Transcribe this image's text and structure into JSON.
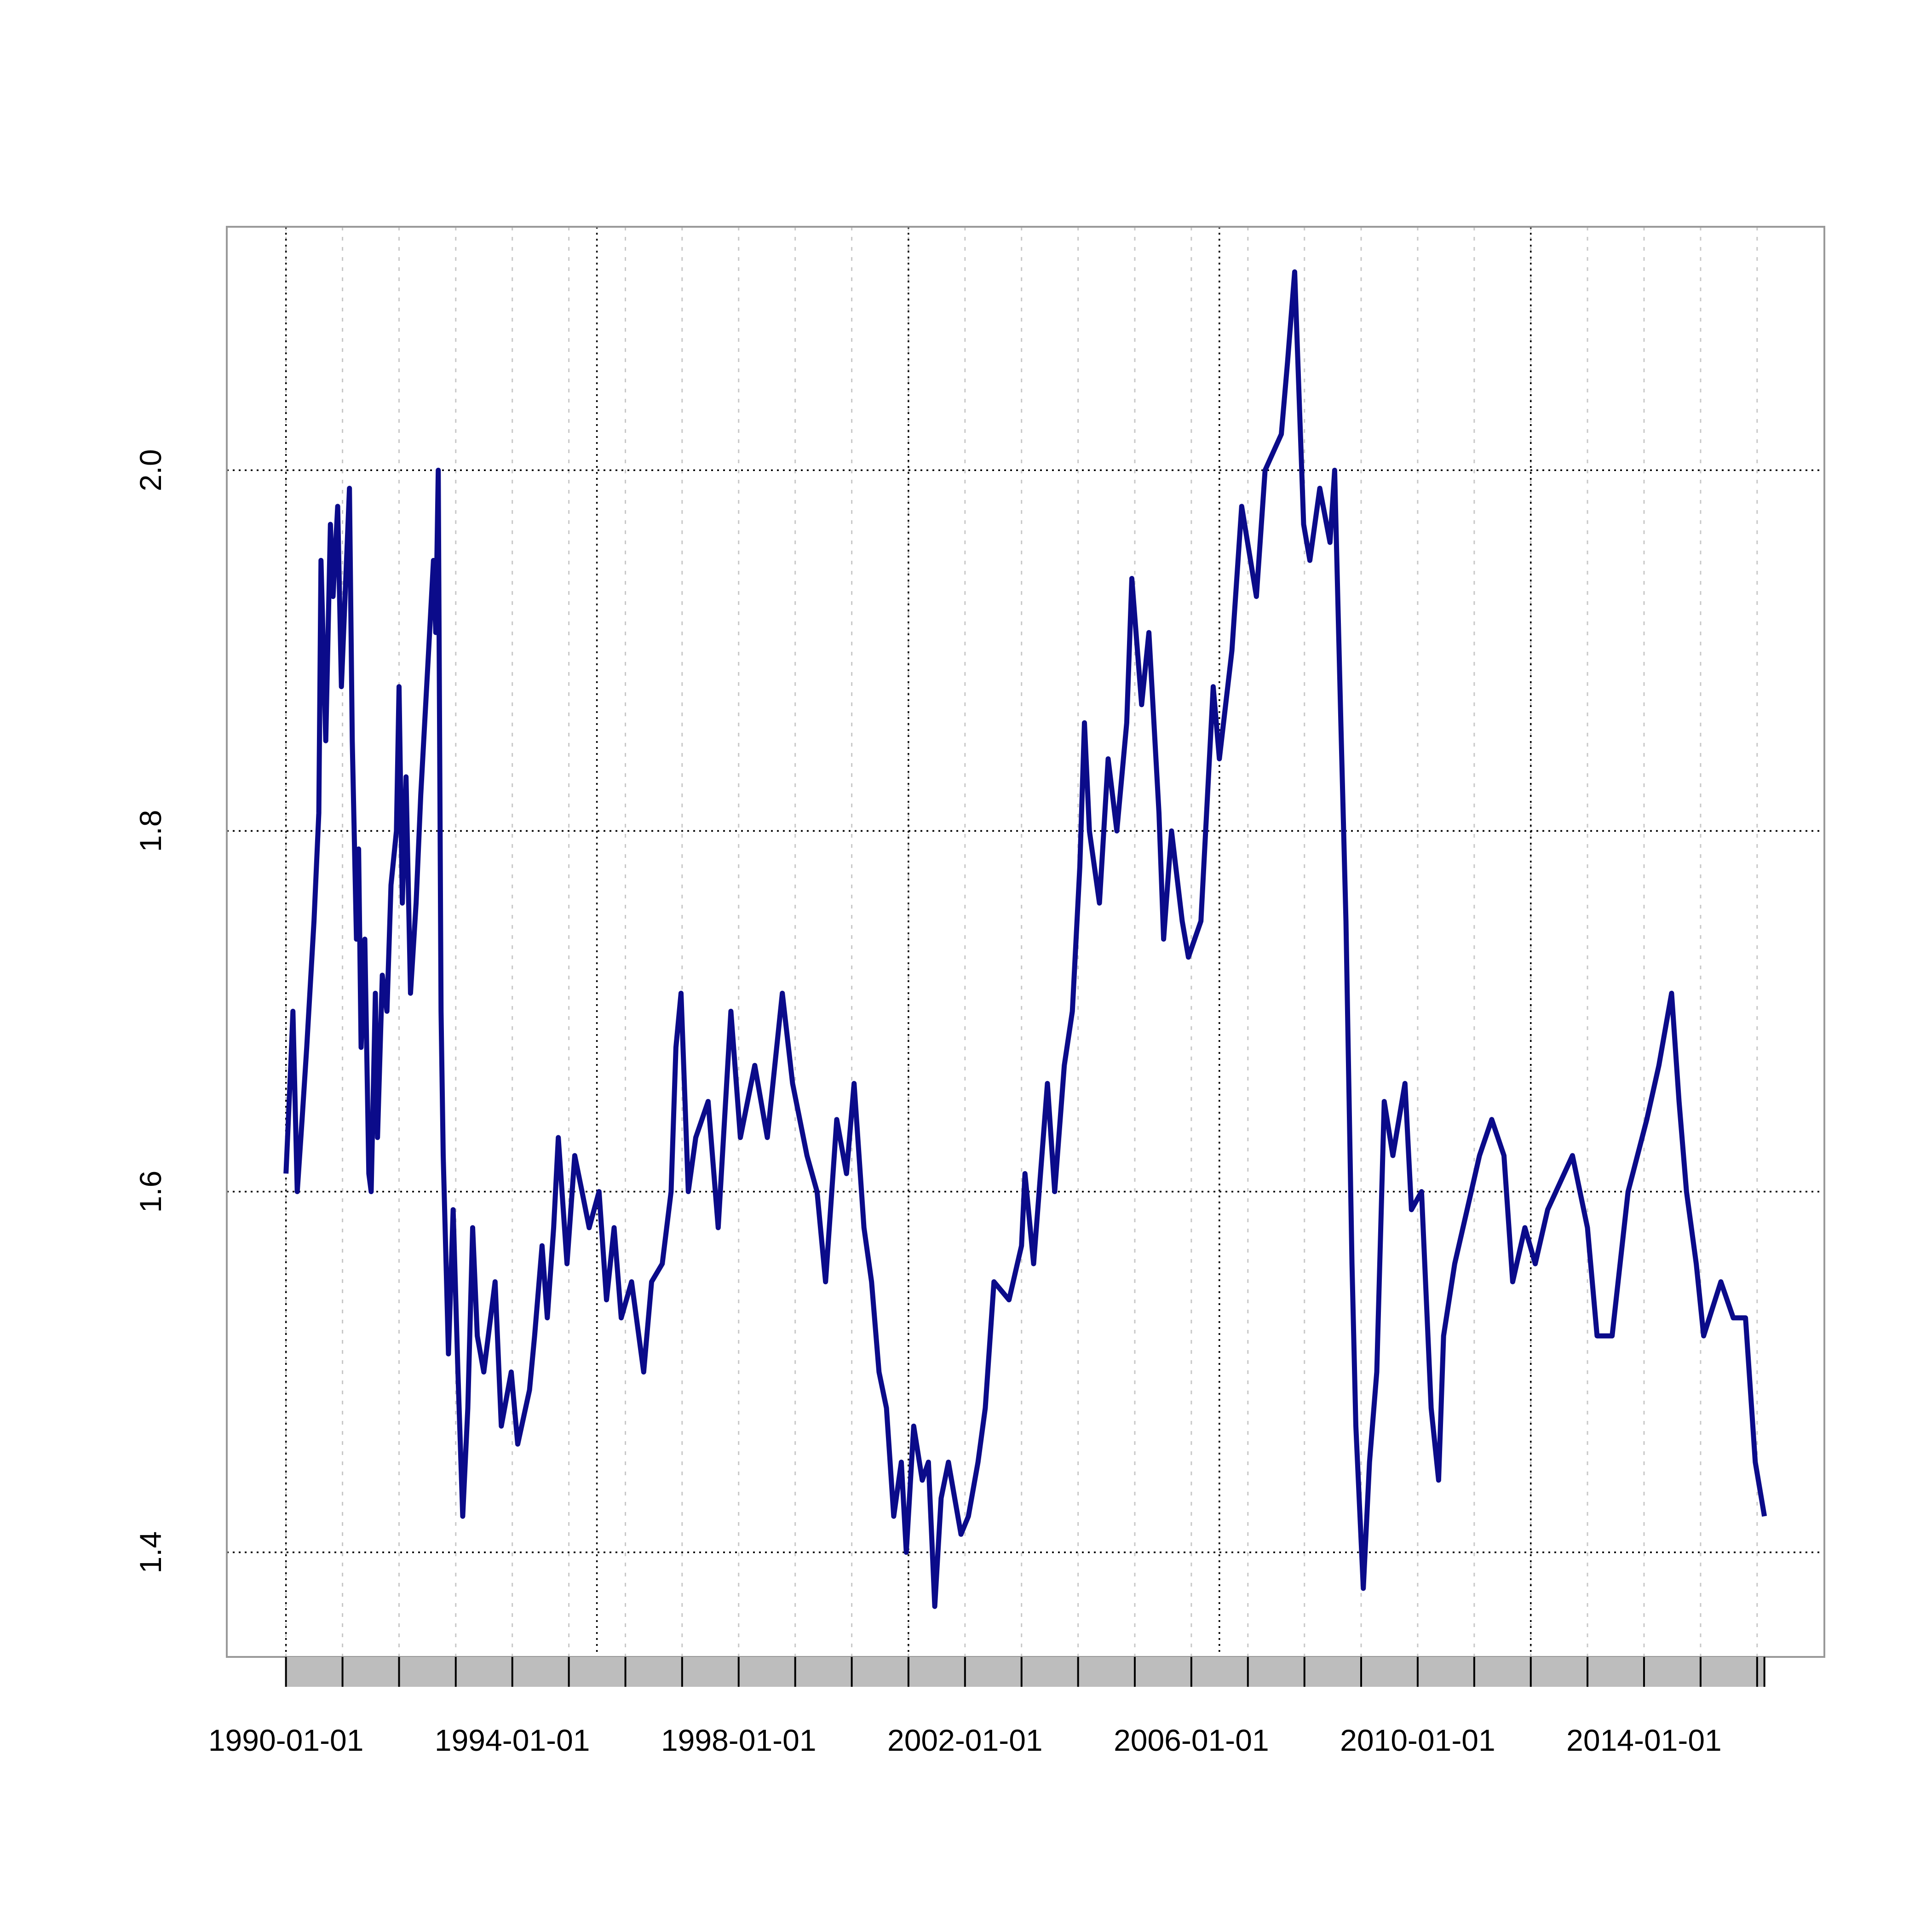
{
  "chart_data": {
    "type": "line",
    "x": [
      "1990-01-01",
      "1990-02-01",
      "1990-02-15",
      "1990-03-15",
      "1990-04-15",
      "1990-05-15",
      "1990-07-01",
      "1990-08-01",
      "1990-08-15",
      "1990-09-15",
      "1990-10-15",
      "1990-11-01",
      "1990-12-01",
      "1990-12-25",
      "1991-02-15",
      "1991-03-05",
      "1991-04-01",
      "1991-04-15",
      "1991-05-01",
      "1991-05-25",
      "1991-06-20",
      "1991-07-05",
      "1991-08-01",
      "1991-08-15",
      "1991-09-15",
      "1991-10-15",
      "1991-11-10",
      "1991-12-15",
      "1992-01-01",
      "1992-01-22",
      "1992-02-15",
      "1992-03-15",
      "1992-04-20",
      "1992-05-20",
      "1992-07-10",
      "1992-08-10",
      "1992-08-25",
      "1992-09-10",
      "1992-09-28",
      "1992-10-12",
      "1992-11-15",
      "1992-12-15",
      "1993-01-15",
      "1993-02-15",
      "1993-03-20",
      "1993-04-20",
      "1993-05-20",
      "1993-07-01",
      "1993-09-12",
      "1993-10-22",
      "1993-12-25",
      "1994-02-05",
      "1994-04-22",
      "1994-05-25",
      "1994-07-12",
      "1994-08-15",
      "1994-09-25",
      "1994-10-25",
      "1994-12-20",
      "1995-02-08",
      "1995-03-27",
      "1995-05-12",
      "1995-07-15",
      "1995-09-01",
      "1995-10-20",
      "1995-12-05",
      "1996-02-10",
      "1996-04-28",
      "1996-06-18",
      "1996-08-26",
      "1996-10-22",
      "1996-11-22",
      "1996-12-25",
      "1997-02-10",
      "1997-03-30",
      "1997-06-18",
      "1997-08-22",
      "1997-11-12",
      "1998-01-12",
      "1998-04-15",
      "1998-07-05",
      "1998-10-10",
      "1998-12-15",
      "1999-03-18",
      "1999-05-22",
      "1999-07-16",
      "1999-09-26",
      "1999-11-28",
      "2000-01-16",
      "2000-03-20",
      "2000-05-08",
      "2000-06-25",
      "2000-08-12",
      "2000-09-28",
      "2000-11-16",
      "2000-12-18",
      "2001-02-04",
      "2001-03-31",
      "2001-05-10",
      "2001-06-20",
      "2001-07-31",
      "2001-09-16",
      "2001-12-06",
      "2002-01-23",
      "2002-03-26",
      "2002-05-12",
      "2002-07-07",
      "2002-10-12",
      "2003-01-01",
      "2003-01-23",
      "2003-03-20",
      "2003-06-17",
      "2003-08-03",
      "2003-10-04",
      "2003-11-25",
      "2004-01-12",
      "2004-02-11",
      "2004-03-14",
      "2004-05-18",
      "2004-07-13",
      "2004-09-07",
      "2004-11-10",
      "2004-12-13",
      "2005-02-14",
      "2005-04-02",
      "2005-06-06",
      "2005-07-06",
      "2005-08-26",
      "2005-11-03",
      "2005-12-13",
      "2006-03-04",
      "2006-05-22",
      "2006-07-01",
      "2006-09-20",
      "2006-11-22",
      "2007-02-25",
      "2007-04-22",
      "2007-08-05",
      "2007-09-14",
      "2007-10-30",
      "2007-12-27",
      "2008-02-05",
      "2008-04-09",
      "2008-06-14",
      "2008-07-14",
      "2008-08-23",
      "2008-09-25",
      "2008-11-03",
      "2008-11-28",
      "2009-01-15",
      "2009-02-24",
      "2009-04-12",
      "2009-05-30",
      "2009-07-25",
      "2009-10-11",
      "2009-11-22",
      "2010-01-26",
      "2010-03-29",
      "2010-05-16",
      "2010-06-17",
      "2010-08-28",
      "2010-11-16",
      "2011-02-04",
      "2011-04-24",
      "2011-07-12",
      "2011-09-06",
      "2011-11-24",
      "2012-01-30",
      "2012-04-19",
      "2012-09-26",
      "2013-01-01",
      "2013-03-04",
      "2013-06-09",
      "2013-09-20",
      "2014-01-19",
      "2014-04-07",
      "2014-06-28",
      "2014-08-15",
      "2014-10-02",
      "2014-12-04",
      "2015-01-21",
      "2015-05-12",
      "2015-07-31",
      "2015-10-18",
      "2015-12-20",
      "2016-02-17"
    ],
    "series": [
      {
        "color": "#0b0b8a",
        "values": [
          1.61,
          1.67,
          1.7,
          1.6,
          1.64,
          1.68,
          1.75,
          1.81,
          1.95,
          1.85,
          1.97,
          1.93,
          1.98,
          1.88,
          1.99,
          1.85,
          1.74,
          1.79,
          1.68,
          1.74,
          1.61,
          1.6,
          1.71,
          1.63,
          1.72,
          1.7,
          1.77,
          1.8,
          1.88,
          1.76,
          1.83,
          1.71,
          1.76,
          1.82,
          1.9,
          1.95,
          1.91,
          2.0,
          1.7,
          1.62,
          1.51,
          1.59,
          1.5,
          1.42,
          1.48,
          1.58,
          1.52,
          1.5,
          1.55,
          1.47,
          1.5,
          1.46,
          1.49,
          1.52,
          1.57,
          1.53,
          1.58,
          1.63,
          1.56,
          1.62,
          1.6,
          1.58,
          1.6,
          1.54,
          1.58,
          1.53,
          1.55,
          1.5,
          1.55,
          1.56,
          1.6,
          1.68,
          1.71,
          1.6,
          1.63,
          1.65,
          1.58,
          1.7,
          1.63,
          1.67,
          1.63,
          1.71,
          1.66,
          1.62,
          1.6,
          1.55,
          1.64,
          1.61,
          1.66,
          1.58,
          1.55,
          1.5,
          1.48,
          1.42,
          1.45,
          1.4,
          1.47,
          1.44,
          1.45,
          1.37,
          1.43,
          1.45,
          1.41,
          1.42,
          1.45,
          1.48,
          1.55,
          1.54,
          1.57,
          1.61,
          1.56,
          1.66,
          1.6,
          1.67,
          1.7,
          1.78,
          1.86,
          1.8,
          1.76,
          1.84,
          1.8,
          1.86,
          1.94,
          1.87,
          1.91,
          1.81,
          1.74,
          1.8,
          1.75,
          1.73,
          1.75,
          1.88,
          1.84,
          1.9,
          1.98,
          1.93,
          2.0,
          2.02,
          2.06,
          2.11,
          1.97,
          1.95,
          1.99,
          1.96,
          2.0,
          1.86,
          1.75,
          1.56,
          1.47,
          1.38,
          1.45,
          1.5,
          1.65,
          1.62,
          1.66,
          1.59,
          1.6,
          1.48,
          1.44,
          1.52,
          1.56,
          1.59,
          1.62,
          1.64,
          1.62,
          1.55,
          1.58,
          1.56,
          1.59,
          1.62,
          1.58,
          1.52,
          1.52,
          1.6,
          1.64,
          1.67,
          1.71,
          1.65,
          1.6,
          1.56,
          1.52,
          1.55,
          1.53,
          1.53,
          1.45,
          1.42
        ]
      }
    ],
    "xlim": [
      "1988-12-15",
      "2017-03-10"
    ],
    "ylim": [
      1.342,
      2.135
    ],
    "yticks": [
      1.4,
      1.6,
      1.8,
      {
        "value": 2,
        "label": "2.0"
      }
    ],
    "xticks": [
      "1990-01-01",
      "1991-01-01",
      "1992-01-01",
      "1993-01-01",
      "1994-01-01",
      "1995-01-01",
      "1996-01-01",
      "1997-01-01",
      "1998-01-01",
      "1999-01-01",
      "2000-01-01",
      "2001-01-01",
      "2002-01-01",
      "2003-01-01",
      "2004-01-01",
      "2005-01-01",
      "2006-01-01",
      "2007-01-01",
      "2008-01-01",
      "2009-01-01",
      "2010-01-01",
      "2011-01-01",
      "2012-01-01",
      "2013-01-01",
      "2014-01-01",
      "2015-01-01",
      "2016-01-01"
    ],
    "xgrid_major": [
      "1990-01-01",
      "1995-07-01",
      "2001-01-01",
      "2006-07-01",
      "2012-01-01"
    ],
    "grid": true
  }
}
